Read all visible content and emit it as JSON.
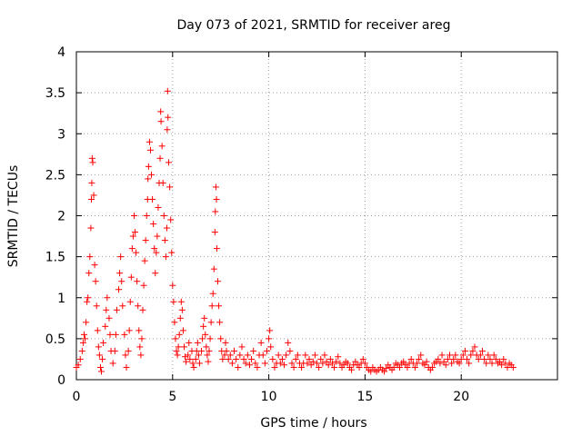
{
  "chart_data": {
    "type": "scatter",
    "title": "Day 073 of 2021, SRMTID for receiver areg",
    "xlabel": "GPS time / hours",
    "ylabel": "SRMTID / TECUs",
    "xlim": [
      0,
      25
    ],
    "ylim": [
      0,
      4
    ],
    "xticks": [
      0,
      5,
      10,
      15,
      20
    ],
    "xtick_labels": [
      "0",
      "5",
      "10",
      "15",
      "20"
    ],
    "yticks": [
      0,
      0.5,
      1,
      1.5,
      2,
      2.5,
      3,
      3.5,
      4
    ],
    "ytick_labels": [
      "0",
      "0.5",
      "1",
      "1.5",
      "2",
      "2.5",
      "3",
      "3.5",
      "4"
    ],
    "grid": true,
    "marker": "+",
    "color": "#ff0000",
    "series": [
      {
        "name": "SRMTID",
        "points": [
          [
            0.0,
            0.15
          ],
          [
            0.1,
            0.18
          ],
          [
            0.2,
            0.25
          ],
          [
            0.3,
            0.35
          ],
          [
            0.35,
            0.45
          ],
          [
            0.4,
            0.55
          ],
          [
            0.45,
            0.5
          ],
          [
            0.5,
            0.7
          ],
          [
            0.55,
            0.95
          ],
          [
            0.6,
            1.0
          ],
          [
            0.65,
            1.3
          ],
          [
            0.7,
            1.5
          ],
          [
            0.75,
            1.85
          ],
          [
            0.78,
            2.2
          ],
          [
            0.8,
            2.4
          ],
          [
            0.82,
            2.7
          ],
          [
            0.85,
            2.65
          ],
          [
            0.9,
            2.25
          ],
          [
            0.95,
            1.4
          ],
          [
            1.0,
            1.2
          ],
          [
            1.05,
            0.9
          ],
          [
            1.1,
            0.6
          ],
          [
            1.15,
            0.4
          ],
          [
            1.2,
            0.3
          ],
          [
            1.25,
            0.15
          ],
          [
            1.3,
            0.1
          ],
          [
            1.35,
            0.25
          ],
          [
            1.4,
            0.45
          ],
          [
            1.5,
            0.65
          ],
          [
            1.55,
            0.85
          ],
          [
            1.6,
            1.0
          ],
          [
            1.7,
            0.75
          ],
          [
            1.75,
            0.55
          ],
          [
            1.8,
            0.35
          ],
          [
            1.9,
            0.2
          ],
          [
            2.0,
            0.35
          ],
          [
            2.05,
            0.55
          ],
          [
            2.1,
            0.85
          ],
          [
            2.2,
            1.1
          ],
          [
            2.25,
            1.3
          ],
          [
            2.3,
            1.5
          ],
          [
            2.35,
            1.2
          ],
          [
            2.4,
            0.9
          ],
          [
            2.5,
            0.55
          ],
          [
            2.55,
            0.3
          ],
          [
            2.6,
            0.15
          ],
          [
            2.7,
            0.35
          ],
          [
            2.75,
            0.6
          ],
          [
            2.8,
            0.95
          ],
          [
            2.85,
            1.25
          ],
          [
            2.9,
            1.6
          ],
          [
            2.95,
            1.75
          ],
          [
            3.0,
            2.0
          ],
          [
            3.05,
            1.8
          ],
          [
            3.1,
            1.55
          ],
          [
            3.15,
            1.2
          ],
          [
            3.2,
            0.9
          ],
          [
            3.25,
            0.6
          ],
          [
            3.3,
            0.4
          ],
          [
            3.35,
            0.3
          ],
          [
            3.4,
            0.5
          ],
          [
            3.45,
            0.85
          ],
          [
            3.5,
            1.15
          ],
          [
            3.55,
            1.45
          ],
          [
            3.6,
            1.7
          ],
          [
            3.65,
            2.0
          ],
          [
            3.7,
            2.2
          ],
          [
            3.72,
            2.45
          ],
          [
            3.75,
            2.6
          ],
          [
            3.8,
            2.9
          ],
          [
            3.85,
            2.8
          ],
          [
            3.9,
            2.5
          ],
          [
            3.95,
            2.2
          ],
          [
            4.0,
            1.9
          ],
          [
            4.05,
            1.6
          ],
          [
            4.1,
            1.3
          ],
          [
            4.15,
            1.55
          ],
          [
            4.2,
            1.75
          ],
          [
            4.25,
            2.1
          ],
          [
            4.3,
            2.4
          ],
          [
            4.35,
            2.7
          ],
          [
            4.38,
            3.27
          ],
          [
            4.4,
            3.15
          ],
          [
            4.45,
            2.85
          ],
          [
            4.5,
            2.4
          ],
          [
            4.55,
            2.0
          ],
          [
            4.6,
            1.7
          ],
          [
            4.65,
            1.5
          ],
          [
            4.7,
            1.85
          ],
          [
            4.72,
            3.05
          ],
          [
            4.74,
            3.52
          ],
          [
            4.76,
            3.2
          ],
          [
            4.8,
            2.65
          ],
          [
            4.85,
            2.35
          ],
          [
            4.9,
            1.95
          ],
          [
            4.95,
            1.55
          ],
          [
            5.0,
            1.15
          ],
          [
            5.05,
            0.95
          ],
          [
            5.1,
            0.7
          ],
          [
            5.15,
            0.5
          ],
          [
            5.2,
            0.35
          ],
          [
            5.25,
            0.3
          ],
          [
            5.3,
            0.4
          ],
          [
            5.35,
            0.55
          ],
          [
            5.4,
            0.75
          ],
          [
            5.45,
            0.95
          ],
          [
            5.5,
            0.85
          ],
          [
            5.55,
            0.6
          ],
          [
            5.6,
            0.4
          ],
          [
            5.65,
            0.28
          ],
          [
            5.7,
            0.22
          ],
          [
            5.8,
            0.3
          ],
          [
            5.85,
            0.45
          ],
          [
            5.9,
            0.25
          ],
          [
            6.0,
            0.35
          ],
          [
            6.05,
            0.2
          ],
          [
            6.1,
            0.15
          ],
          [
            6.2,
            0.25
          ],
          [
            6.25,
            0.35
          ],
          [
            6.3,
            0.45
          ],
          [
            6.35,
            0.3
          ],
          [
            6.4,
            0.2
          ],
          [
            6.5,
            0.35
          ],
          [
            6.55,
            0.5
          ],
          [
            6.6,
            0.65
          ],
          [
            6.65,
            0.75
          ],
          [
            6.7,
            0.55
          ],
          [
            6.75,
            0.4
          ],
          [
            6.8,
            0.3
          ],
          [
            6.85,
            0.22
          ],
          [
            6.9,
            0.35
          ],
          [
            6.95,
            0.5
          ],
          [
            7.0,
            0.7
          ],
          [
            7.05,
            0.9
          ],
          [
            7.1,
            1.05
          ],
          [
            7.15,
            1.35
          ],
          [
            7.2,
            1.8
          ],
          [
            7.22,
            2.05
          ],
          [
            7.25,
            2.35
          ],
          [
            7.28,
            2.2
          ],
          [
            7.3,
            1.6
          ],
          [
            7.35,
            1.2
          ],
          [
            7.4,
            0.9
          ],
          [
            7.45,
            0.7
          ],
          [
            7.5,
            0.5
          ],
          [
            7.55,
            0.35
          ],
          [
            7.6,
            0.25
          ],
          [
            7.7,
            0.3
          ],
          [
            7.75,
            0.45
          ],
          [
            7.8,
            0.35
          ],
          [
            7.9,
            0.25
          ],
          [
            8.0,
            0.3
          ],
          [
            8.1,
            0.2
          ],
          [
            8.2,
            0.35
          ],
          [
            8.3,
            0.25
          ],
          [
            8.4,
            0.15
          ],
          [
            8.5,
            0.3
          ],
          [
            8.6,
            0.4
          ],
          [
            8.7,
            0.25
          ],
          [
            8.8,
            0.2
          ],
          [
            8.9,
            0.3
          ],
          [
            9.0,
            0.18
          ],
          [
            9.1,
            0.25
          ],
          [
            9.2,
            0.35
          ],
          [
            9.3,
            0.2
          ],
          [
            9.4,
            0.15
          ],
          [
            9.5,
            0.3
          ],
          [
            9.6,
            0.45
          ],
          [
            9.7,
            0.3
          ],
          [
            9.8,
            0.2
          ],
          [
            9.9,
            0.35
          ],
          [
            10.0,
            0.5
          ],
          [
            10.05,
            0.6
          ],
          [
            10.1,
            0.4
          ],
          [
            10.2,
            0.25
          ],
          [
            10.3,
            0.15
          ],
          [
            10.4,
            0.2
          ],
          [
            10.5,
            0.3
          ],
          [
            10.6,
            0.2
          ],
          [
            10.7,
            0.25
          ],
          [
            10.8,
            0.18
          ],
          [
            10.9,
            0.3
          ],
          [
            11.0,
            0.45
          ],
          [
            11.1,
            0.35
          ],
          [
            11.2,
            0.2
          ],
          [
            11.3,
            0.15
          ],
          [
            11.4,
            0.25
          ],
          [
            11.5,
            0.3
          ],
          [
            11.6,
            0.2
          ],
          [
            11.7,
            0.15
          ],
          [
            11.8,
            0.2
          ],
          [
            11.9,
            0.3
          ],
          [
            12.0,
            0.2
          ],
          [
            12.1,
            0.25
          ],
          [
            12.2,
            0.18
          ],
          [
            12.3,
            0.22
          ],
          [
            12.4,
            0.3
          ],
          [
            12.5,
            0.2
          ],
          [
            12.6,
            0.15
          ],
          [
            12.7,
            0.25
          ],
          [
            12.8,
            0.2
          ],
          [
            12.9,
            0.3
          ],
          [
            13.0,
            0.22
          ],
          [
            13.1,
            0.18
          ],
          [
            13.2,
            0.25
          ],
          [
            13.3,
            0.2
          ],
          [
            13.4,
            0.15
          ],
          [
            13.5,
            0.22
          ],
          [
            13.6,
            0.28
          ],
          [
            13.7,
            0.2
          ],
          [
            13.8,
            0.15
          ],
          [
            13.9,
            0.18
          ],
          [
            14.0,
            0.22
          ],
          [
            14.1,
            0.2
          ],
          [
            14.2,
            0.15
          ],
          [
            14.3,
            0.12
          ],
          [
            14.4,
            0.18
          ],
          [
            14.5,
            0.22
          ],
          [
            14.6,
            0.18
          ],
          [
            14.7,
            0.15
          ],
          [
            14.8,
            0.2
          ],
          [
            14.9,
            0.25
          ],
          [
            15.0,
            0.2
          ],
          [
            15.1,
            0.15
          ],
          [
            15.2,
            0.12
          ],
          [
            15.3,
            0.1
          ],
          [
            15.4,
            0.15
          ],
          [
            15.5,
            0.12
          ],
          [
            15.6,
            0.1
          ],
          [
            15.7,
            0.12
          ],
          [
            15.8,
            0.15
          ],
          [
            15.9,
            0.12
          ],
          [
            16.0,
            0.1
          ],
          [
            16.1,
            0.14
          ],
          [
            16.2,
            0.18
          ],
          [
            16.3,
            0.15
          ],
          [
            16.4,
            0.12
          ],
          [
            16.5,
            0.15
          ],
          [
            16.6,
            0.2
          ],
          [
            16.7,
            0.18
          ],
          [
            16.8,
            0.15
          ],
          [
            16.9,
            0.2
          ],
          [
            17.0,
            0.22
          ],
          [
            17.1,
            0.18
          ],
          [
            17.2,
            0.15
          ],
          [
            17.3,
            0.2
          ],
          [
            17.4,
            0.25
          ],
          [
            17.5,
            0.2
          ],
          [
            17.6,
            0.15
          ],
          [
            17.7,
            0.2
          ],
          [
            17.8,
            0.25
          ],
          [
            17.9,
            0.3
          ],
          [
            18.0,
            0.2
          ],
          [
            18.1,
            0.18
          ],
          [
            18.2,
            0.22
          ],
          [
            18.3,
            0.15
          ],
          [
            18.4,
            0.12
          ],
          [
            18.5,
            0.15
          ],
          [
            18.6,
            0.2
          ],
          [
            18.7,
            0.22
          ],
          [
            18.8,
            0.25
          ],
          [
            18.9,
            0.2
          ],
          [
            19.0,
            0.3
          ],
          [
            19.1,
            0.22
          ],
          [
            19.2,
            0.18
          ],
          [
            19.3,
            0.25
          ],
          [
            19.4,
            0.3
          ],
          [
            19.5,
            0.2
          ],
          [
            19.6,
            0.25
          ],
          [
            19.7,
            0.3
          ],
          [
            19.8,
            0.22
          ],
          [
            19.9,
            0.2
          ],
          [
            20.0,
            0.25
          ],
          [
            20.1,
            0.3
          ],
          [
            20.2,
            0.35
          ],
          [
            20.3,
            0.25
          ],
          [
            20.4,
            0.2
          ],
          [
            20.5,
            0.3
          ],
          [
            20.6,
            0.35
          ],
          [
            20.7,
            0.4
          ],
          [
            20.8,
            0.3
          ],
          [
            20.9,
            0.25
          ],
          [
            21.0,
            0.3
          ],
          [
            21.1,
            0.35
          ],
          [
            21.2,
            0.25
          ],
          [
            21.3,
            0.2
          ],
          [
            21.4,
            0.3
          ],
          [
            21.5,
            0.25
          ],
          [
            21.6,
            0.2
          ],
          [
            21.7,
            0.3
          ],
          [
            21.8,
            0.25
          ],
          [
            21.9,
            0.2
          ],
          [
            22.0,
            0.22
          ],
          [
            22.1,
            0.18
          ],
          [
            22.2,
            0.25
          ],
          [
            22.3,
            0.2
          ],
          [
            22.4,
            0.15
          ],
          [
            22.5,
            0.2
          ],
          [
            22.6,
            0.18
          ],
          [
            22.7,
            0.15
          ]
        ]
      }
    ]
  }
}
